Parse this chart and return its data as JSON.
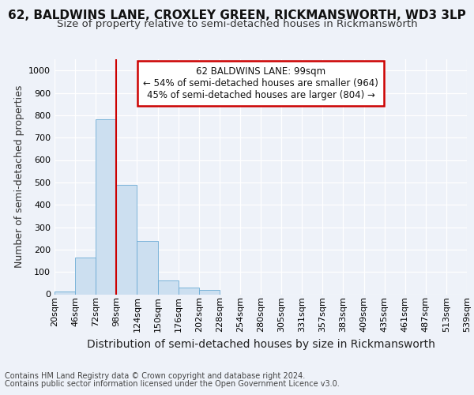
{
  "title1": "62, BALDWINS LANE, CROXLEY GREEN, RICKMANSWORTH, WD3 3LP",
  "title2": "Size of property relative to semi-detached houses in Rickmansworth",
  "xlabel": "Distribution of semi-detached houses by size in Rickmansworth",
  "ylabel": "Number of semi-detached properties",
  "footer1": "Contains HM Land Registry data © Crown copyright and database right 2024.",
  "footer2": "Contains public sector information licensed under the Open Government Licence v3.0.",
  "annotation_line1": "62 BALDWINS LANE: 99sqm",
  "annotation_line2": "← 54% of semi-detached houses are smaller (964)",
  "annotation_line3": "45% of semi-detached houses are larger (804) →",
  "bar_values": [
    13,
    163,
    783,
    490,
    240,
    63,
    30,
    18,
    0,
    0,
    0,
    0,
    0,
    0,
    0,
    0,
    0,
    0,
    0,
    0
  ],
  "bin_labels": [
    "20sqm",
    "46sqm",
    "72sqm",
    "98sqm",
    "124sqm",
    "150sqm",
    "176sqm",
    "202sqm",
    "228sqm",
    "254sqm",
    "280sqm",
    "305sqm",
    "331sqm",
    "357sqm",
    "383sqm",
    "409sqm",
    "435sqm",
    "461sqm",
    "487sqm",
    "513sqm",
    "539sqm"
  ],
  "bar_color": "#ccdff0",
  "bar_edge_color": "#6aaad4",
  "vline_color": "#cc0000",
  "ylim": [
    0,
    1050
  ],
  "yticks": [
    0,
    100,
    200,
    300,
    400,
    500,
    600,
    700,
    800,
    900,
    1000
  ],
  "annotation_box_edge_color": "#cc0000",
  "bg_color": "#eef2f9",
  "grid_color": "#ffffff",
  "title_fontsize": 11,
  "subtitle_fontsize": 9.5,
  "axis_label_fontsize": 9,
  "tick_fontsize": 8,
  "footer_fontsize": 7
}
